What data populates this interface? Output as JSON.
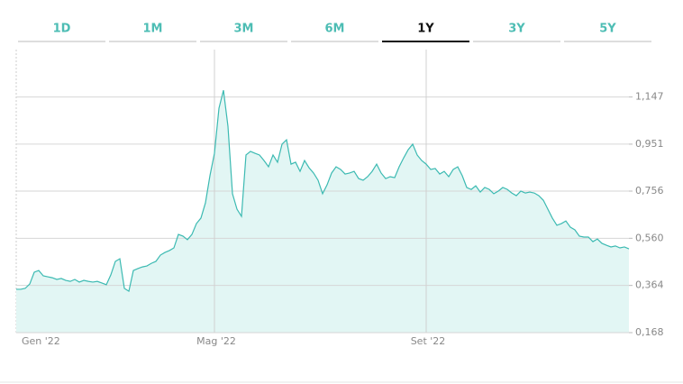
{
  "tabs": [
    "1D",
    "1M",
    "3M",
    "6M",
    "1Y",
    "3Y",
    "5Y"
  ],
  "selected_tab": "1Y",
  "chart_data": {
    "type": "area",
    "color": "#3cbab2",
    "fill": "#e2f6f4",
    "grid": true,
    "categories": [
      "Gen '22",
      null,
      null,
      null,
      null,
      null,
      null,
      null,
      null,
      null,
      null,
      null,
      null,
      null,
      null,
      null,
      null,
      null,
      null,
      null,
      null,
      null,
      null,
      null,
      null,
      null,
      null,
      null,
      null,
      null,
      null,
      null,
      null,
      null,
      null,
      null,
      null,
      null,
      null,
      null,
      null,
      null,
      null,
      null,
      "Mag '22",
      null,
      null,
      null,
      null,
      null,
      null,
      null,
      null,
      null,
      null,
      null,
      null,
      null,
      null,
      null,
      null,
      null,
      null,
      null,
      null,
      null,
      null,
      null,
      null,
      null,
      null,
      null,
      null,
      null,
      null,
      null,
      null,
      null,
      null,
      null,
      null,
      null,
      null,
      null,
      null,
      null,
      null,
      null,
      null,
      null,
      null,
      "Set '22",
      null,
      null,
      null,
      null,
      null,
      null,
      null,
      null,
      null,
      null,
      null,
      null,
      null,
      null,
      null,
      null,
      null,
      null,
      null,
      null,
      null,
      null,
      null,
      null,
      null,
      null,
      null,
      null,
      null,
      null,
      null,
      null,
      null,
      null,
      null,
      null,
      null,
      null,
      null,
      null,
      null,
      null,
      null,
      null,
      null
    ],
    "values": [
      0.348,
      0.348,
      0.352,
      0.37,
      0.419,
      0.426,
      0.404,
      0.4,
      0.396,
      0.389,
      0.393,
      0.385,
      0.381,
      0.389,
      0.378,
      0.385,
      0.381,
      0.378,
      0.381,
      0.374,
      0.367,
      0.408,
      0.464,
      0.475,
      0.352,
      0.34,
      0.426,
      0.434,
      0.441,
      0.445,
      0.456,
      0.464,
      0.49,
      0.501,
      0.509,
      0.52,
      0.576,
      0.569,
      0.554,
      0.576,
      0.621,
      0.644,
      0.707,
      0.82,
      0.913,
      1.1,
      1.175,
      1.025,
      0.745,
      0.681,
      0.651,
      0.906,
      0.921,
      0.913,
      0.906,
      0.883,
      0.857,
      0.906,
      0.876,
      0.951,
      0.969,
      0.868,
      0.876,
      0.838,
      0.883,
      0.853,
      0.831,
      0.801,
      0.745,
      0.782,
      0.831,
      0.857,
      0.846,
      0.827,
      0.831,
      0.838,
      0.808,
      0.801,
      0.816,
      0.838,
      0.868,
      0.831,
      0.808,
      0.816,
      0.812,
      0.857,
      0.894,
      0.928,
      0.951,
      0.906,
      0.883,
      0.868,
      0.846,
      0.85,
      0.827,
      0.838,
      0.816,
      0.846,
      0.857,
      0.82,
      0.771,
      0.763,
      0.778,
      0.752,
      0.771,
      0.763,
      0.745,
      0.756,
      0.771,
      0.763,
      0.748,
      0.737,
      0.756,
      0.748,
      0.752,
      0.748,
      0.737,
      0.718,
      0.681,
      0.644,
      0.614,
      0.621,
      0.632,
      0.606,
      0.595,
      0.569,
      0.565,
      0.565,
      0.546,
      0.557,
      0.539,
      0.531,
      0.524,
      0.528,
      0.52,
      0.524,
      0.516
    ],
    "ylim": [
      0.168,
      1.344
    ],
    "yticks": [
      {
        "value": 0.168,
        "label": "0,168"
      },
      {
        "value": 0.364,
        "label": "0,364"
      },
      {
        "value": 0.56,
        "label": "0,560"
      },
      {
        "value": 0.756,
        "label": "0,756"
      },
      {
        "value": 0.951,
        "label": "0,951"
      },
      {
        "value": 1.147,
        "label": "1,147"
      }
    ]
  }
}
